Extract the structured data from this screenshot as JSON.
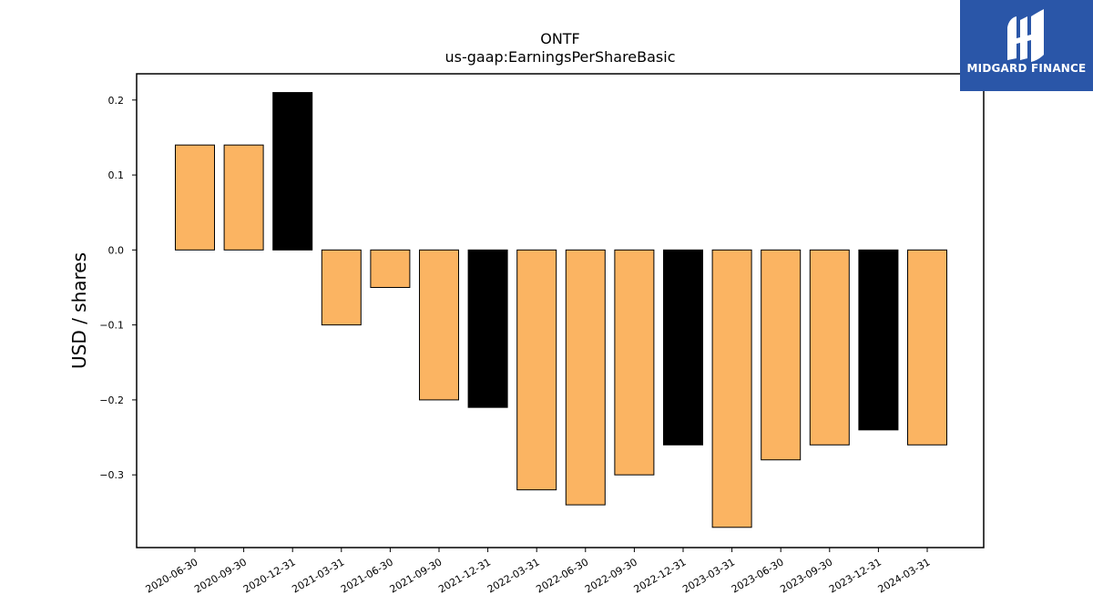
{
  "logo": {
    "text": "MIDGARD FINANCE"
  },
  "colors": {
    "bar": "#fbb462",
    "highlight": "#000000",
    "logo_bg": "#2a56a8"
  },
  "chart_data": {
    "type": "bar",
    "title": "ONTF",
    "subtitle": "us-gaap:EarningsPerShareBasic",
    "xlabel": "",
    "ylabel": "USD / shares",
    "ylim": [
      -0.397,
      0.235
    ],
    "yticks": [
      0.2,
      0.1,
      0.0,
      -0.1,
      -0.2,
      -0.3
    ],
    "ytick_labels": [
      "0.2",
      "0.1",
      "0.0",
      "−0.1",
      "−0.2",
      "−0.3"
    ],
    "grid": false,
    "categories": [
      "2020-06-30",
      "2020-09-30",
      "2020-12-31",
      "2021-03-31",
      "2021-06-30",
      "2021-09-30",
      "2021-12-31",
      "2022-03-31",
      "2022-06-30",
      "2022-09-30",
      "2022-12-31",
      "2023-03-31",
      "2023-06-30",
      "2023-09-30",
      "2023-12-31",
      "2024-03-31"
    ],
    "values": [
      0.14,
      0.14,
      0.21,
      -0.1,
      -0.05,
      -0.2,
      -0.21,
      -0.32,
      -0.34,
      -0.3,
      -0.26,
      -0.37,
      -0.28,
      -0.26,
      -0.24,
      -0.26
    ],
    "highlight": [
      false,
      false,
      true,
      false,
      false,
      false,
      true,
      false,
      false,
      false,
      true,
      false,
      false,
      false,
      true,
      false
    ]
  }
}
